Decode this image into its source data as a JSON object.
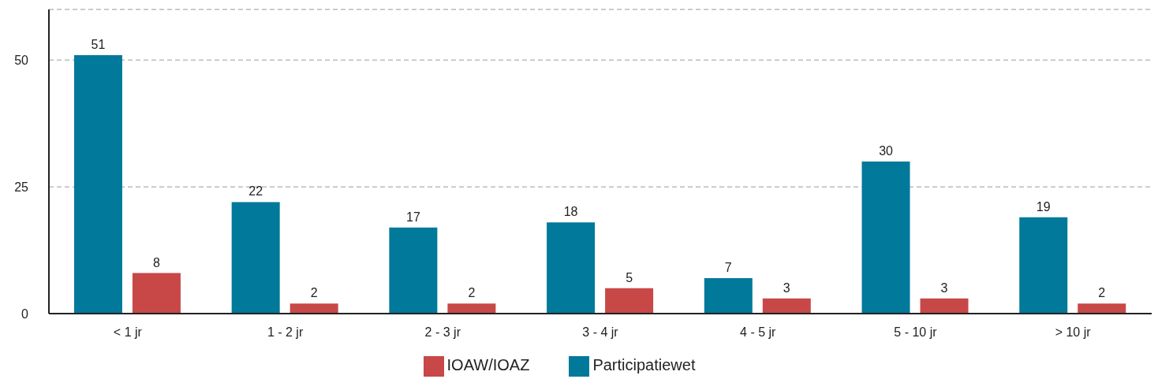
{
  "chart_data": {
    "type": "bar",
    "categories": [
      "< 1 jr",
      "1 - 2 jr",
      "2 - 3 jr",
      "3 - 4 jr",
      "4 - 5 jr",
      "5 - 10 jr",
      "> 10 jr"
    ],
    "series": [
      {
        "name": "Participatiewet",
        "color": "#00799a",
        "values": [
          51,
          22,
          17,
          18,
          7,
          30,
          19
        ]
      },
      {
        "name": "IOAW/IOAZ",
        "color": "#c84848",
        "values": [
          8,
          2,
          2,
          5,
          3,
          3,
          2
        ]
      }
    ],
    "ylim": [
      0,
      60
    ],
    "yticks": [
      0,
      25,
      50
    ],
    "grid": "y",
    "legend": "bottom",
    "data_labels": true
  }
}
